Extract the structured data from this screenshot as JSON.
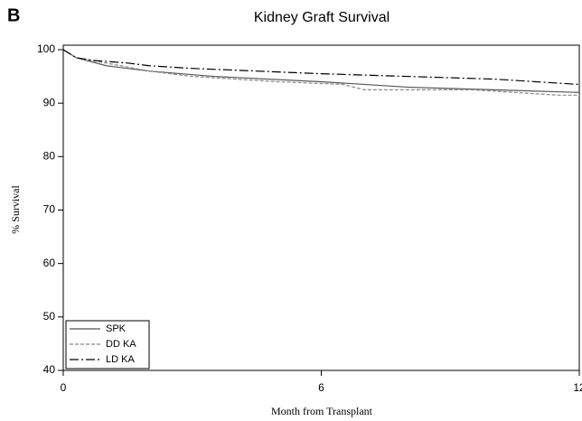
{
  "panel": "B",
  "chart_data": {
    "type": "line",
    "title": "Kidney Graft Survival",
    "xlabel": "Month from Transplant",
    "ylabel": "% Survival",
    "xlim": [
      0,
      12
    ],
    "xticks": [
      0,
      6,
      12
    ],
    "ylim": [
      40,
      100
    ],
    "yticks": [
      40,
      50,
      60,
      70,
      80,
      90,
      100
    ],
    "legend": "lower left",
    "series": [
      {
        "name": "SPK",
        "color": "#555555",
        "dash": "solid",
        "x": [
          0,
          0.3,
          1,
          2,
          3.5,
          6,
          8,
          10,
          12
        ],
        "values": [
          100,
          98.5,
          97,
          96,
          95,
          94,
          93,
          92.5,
          92
        ]
      },
      {
        "name": "DD KA",
        "color": "#888888",
        "dash": "dashed",
        "x": [
          0,
          0.3,
          1,
          2,
          3,
          5,
          6.5,
          7,
          9.5,
          10.5,
          11.5,
          12
        ],
        "values": [
          100,
          98.5,
          97.5,
          96,
          95,
          94,
          93.5,
          92.5,
          92.5,
          92,
          91.5,
          91.5
        ]
      },
      {
        "name": "LD KA",
        "color": "#000000",
        "dash": "dashdot",
        "x": [
          0,
          0.3,
          0.7,
          1.5,
          2,
          3,
          4.5,
          6,
          8,
          10,
          11,
          12
        ],
        "values": [
          100,
          98.5,
          98,
          97.5,
          97,
          96.5,
          96,
          95.5,
          95,
          94.5,
          94,
          93.5
        ]
      }
    ]
  }
}
